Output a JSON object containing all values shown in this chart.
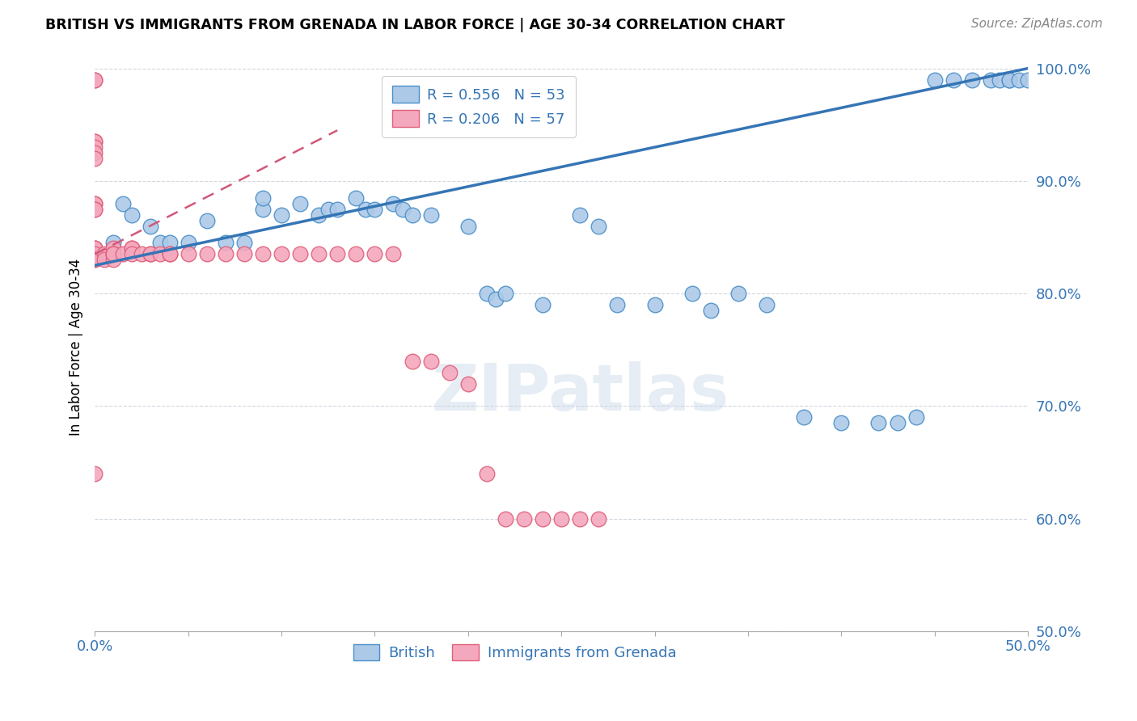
{
  "title": "BRITISH VS IMMIGRANTS FROM GRENADA IN LABOR FORCE | AGE 30-34 CORRELATION CHART",
  "source": "Source: ZipAtlas.com",
  "ylabel": "In Labor Force | Age 30-34",
  "xlim": [
    0.0,
    0.5
  ],
  "ylim": [
    0.5,
    1.005
  ],
  "ytick_positions": [
    0.5,
    0.6,
    0.7,
    0.8,
    0.9,
    1.0
  ],
  "ytick_labels": [
    "50.0%",
    "60.0%",
    "70.0%",
    "80.0%",
    "90.0%",
    "100.0%"
  ],
  "xtick_positions": [
    0.0,
    0.05,
    0.1,
    0.15,
    0.2,
    0.25,
    0.3,
    0.35,
    0.4,
    0.45,
    0.5
  ],
  "xtick_labels": [
    "0.0%",
    "",
    "",
    "",
    "",
    "",
    "",
    "",
    "",
    "",
    "50.0%"
  ],
  "blue_R": 0.556,
  "blue_N": 53,
  "pink_R": 0.206,
  "pink_N": 57,
  "blue_color": "#adc9e8",
  "pink_color": "#f4a8be",
  "blue_edge_color": "#4a90c8",
  "pink_edge_color": "#e0607a",
  "blue_line_color": "#3575b5",
  "pink_line_color": "#d05878",
  "legend_text_color": "#3575b5",
  "grid_color": "#d0d8e0",
  "watermark": "ZIPatlas",
  "blue_scatter_x": [
    0.0,
    0.0,
    0.01,
    0.015,
    0.02,
    0.03,
    0.035,
    0.04,
    0.05,
    0.06,
    0.07,
    0.08,
    0.09,
    0.09,
    0.1,
    0.11,
    0.12,
    0.125,
    0.13,
    0.14,
    0.145,
    0.15,
    0.16,
    0.165,
    0.17,
    0.18,
    0.2,
    0.21,
    0.215,
    0.22,
    0.24,
    0.26,
    0.27,
    0.28,
    0.3,
    0.32,
    0.33,
    0.345,
    0.36,
    0.38,
    0.4,
    0.42,
    0.43,
    0.44,
    0.45,
    0.46,
    0.47,
    0.48,
    0.485,
    0.49,
    0.49,
    0.495,
    0.5
  ],
  "blue_scatter_y": [
    0.84,
    0.835,
    0.845,
    0.88,
    0.87,
    0.86,
    0.845,
    0.845,
    0.845,
    0.865,
    0.845,
    0.845,
    0.875,
    0.885,
    0.87,
    0.88,
    0.87,
    0.875,
    0.875,
    0.885,
    0.875,
    0.875,
    0.88,
    0.875,
    0.87,
    0.87,
    0.86,
    0.8,
    0.795,
    0.8,
    0.79,
    0.87,
    0.86,
    0.79,
    0.79,
    0.8,
    0.785,
    0.8,
    0.79,
    0.69,
    0.685,
    0.685,
    0.685,
    0.69,
    0.99,
    0.99,
    0.99,
    0.99,
    0.99,
    0.99,
    0.99,
    0.99,
    0.99
  ],
  "pink_scatter_x": [
    0.0,
    0.0,
    0.0,
    0.0,
    0.0,
    0.0,
    0.0,
    0.0,
    0.0,
    0.0,
    0.0,
    0.0,
    0.0,
    0.0,
    0.0,
    0.0,
    0.0,
    0.005,
    0.005,
    0.01,
    0.01,
    0.01,
    0.01,
    0.01,
    0.015,
    0.02,
    0.02,
    0.02,
    0.025,
    0.03,
    0.03,
    0.035,
    0.04,
    0.04,
    0.05,
    0.06,
    0.07,
    0.08,
    0.09,
    0.1,
    0.11,
    0.12,
    0.13,
    0.14,
    0.15,
    0.16,
    0.17,
    0.18,
    0.19,
    0.2,
    0.21,
    0.22,
    0.23,
    0.24,
    0.25,
    0.26,
    0.27
  ],
  "pink_scatter_y": [
    0.99,
    0.99,
    0.935,
    0.935,
    0.93,
    0.925,
    0.92,
    0.88,
    0.88,
    0.875,
    0.875,
    0.84,
    0.84,
    0.835,
    0.83,
    0.83,
    0.64,
    0.835,
    0.83,
    0.84,
    0.835,
    0.83,
    0.835,
    0.835,
    0.835,
    0.84,
    0.84,
    0.835,
    0.835,
    0.835,
    0.835,
    0.835,
    0.835,
    0.835,
    0.835,
    0.835,
    0.835,
    0.835,
    0.835,
    0.835,
    0.835,
    0.835,
    0.835,
    0.835,
    0.835,
    0.835,
    0.74,
    0.74,
    0.73,
    0.72,
    0.64,
    0.6,
    0.6,
    0.6,
    0.6,
    0.6,
    0.6
  ],
  "blue_line_x": [
    0.0,
    0.5
  ],
  "blue_line_y": [
    0.825,
    1.0
  ],
  "pink_line_x": [
    0.0,
    0.13
  ],
  "pink_line_y": [
    0.835,
    0.945
  ],
  "pink_line_dash": [
    6,
    4
  ]
}
